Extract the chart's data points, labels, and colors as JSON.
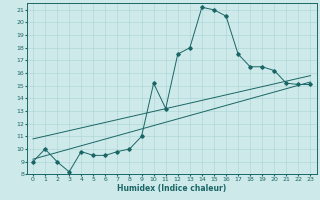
{
  "xlabel": "Humidex (Indice chaleur)",
  "ylabel": "",
  "bg_color": "#cee9e9",
  "line_color": "#1a6666",
  "grid_color": "#aad4d4",
  "xlim": [
    -0.5,
    23.5
  ],
  "ylim": [
    8,
    21.5
  ],
  "xticks": [
    0,
    1,
    2,
    3,
    4,
    5,
    6,
    7,
    8,
    9,
    10,
    11,
    12,
    13,
    14,
    15,
    16,
    17,
    18,
    19,
    20,
    21,
    22,
    23
  ],
  "yticks": [
    8,
    9,
    10,
    11,
    12,
    13,
    14,
    15,
    16,
    17,
    18,
    19,
    20,
    21
  ],
  "curve1_x": [
    0,
    1,
    2,
    3,
    4,
    5,
    6,
    7,
    8,
    9,
    10,
    11,
    12,
    13,
    14,
    15,
    16,
    17,
    18,
    19,
    20,
    21,
    22,
    23
  ],
  "curve1_y": [
    9.0,
    10.0,
    9.0,
    8.2,
    9.8,
    9.5,
    9.5,
    9.8,
    10.0,
    11.0,
    15.2,
    13.2,
    17.5,
    18.0,
    21.2,
    21.0,
    20.5,
    17.5,
    16.5,
    16.5,
    16.2,
    15.2,
    15.1,
    15.1
  ],
  "line2_x": [
    0,
    23
  ],
  "line2_y": [
    9.2,
    15.3
  ],
  "line3_x": [
    0,
    23
  ],
  "line3_y": [
    10.8,
    15.8
  ]
}
